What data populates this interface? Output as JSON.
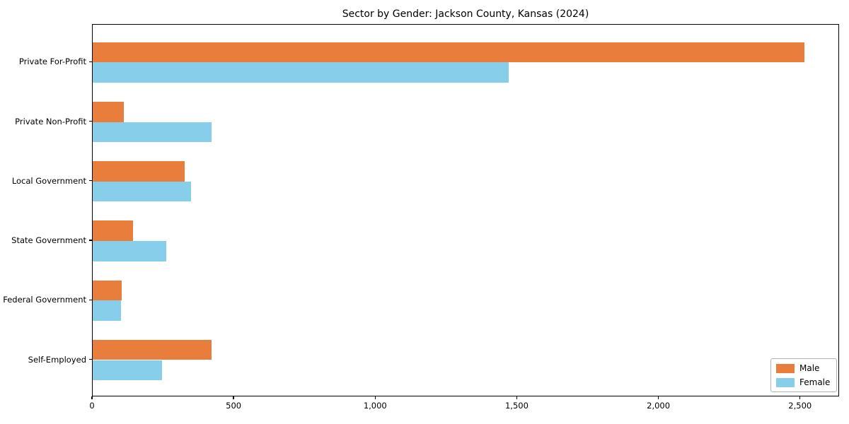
{
  "chart_data": {
    "type": "bar",
    "orientation": "horizontal",
    "title": "Sector by Gender: Jackson County, Kansas (2024)",
    "categories": [
      "Private For-Profit",
      "Private Non-Profit",
      "Local Government",
      "State Government",
      "Federal Government",
      "Self-Employed"
    ],
    "series": [
      {
        "name": "Male",
        "color": "#e87d3c",
        "values": [
          2512,
          110,
          324,
          143,
          102,
          420
        ]
      },
      {
        "name": "Female",
        "color": "#87ceeb",
        "values": [
          1470,
          420,
          347,
          260,
          100,
          245
        ]
      }
    ],
    "xlabel": "",
    "ylabel": "",
    "xlim": [
      0,
      2638
    ],
    "xticks": [
      {
        "value": 0,
        "label": "0"
      },
      {
        "value": 500,
        "label": "500"
      },
      {
        "value": 1000,
        "label": "1,000"
      },
      {
        "value": 1500,
        "label": "1,500"
      },
      {
        "value": 2000,
        "label": "2,000"
      },
      {
        "value": 2500,
        "label": "2,500"
      }
    ],
    "grid": false,
    "legend_position": "lower right",
    "background_color": "#ffffff",
    "spine_color": "#000000",
    "text_color": "#000000"
  }
}
